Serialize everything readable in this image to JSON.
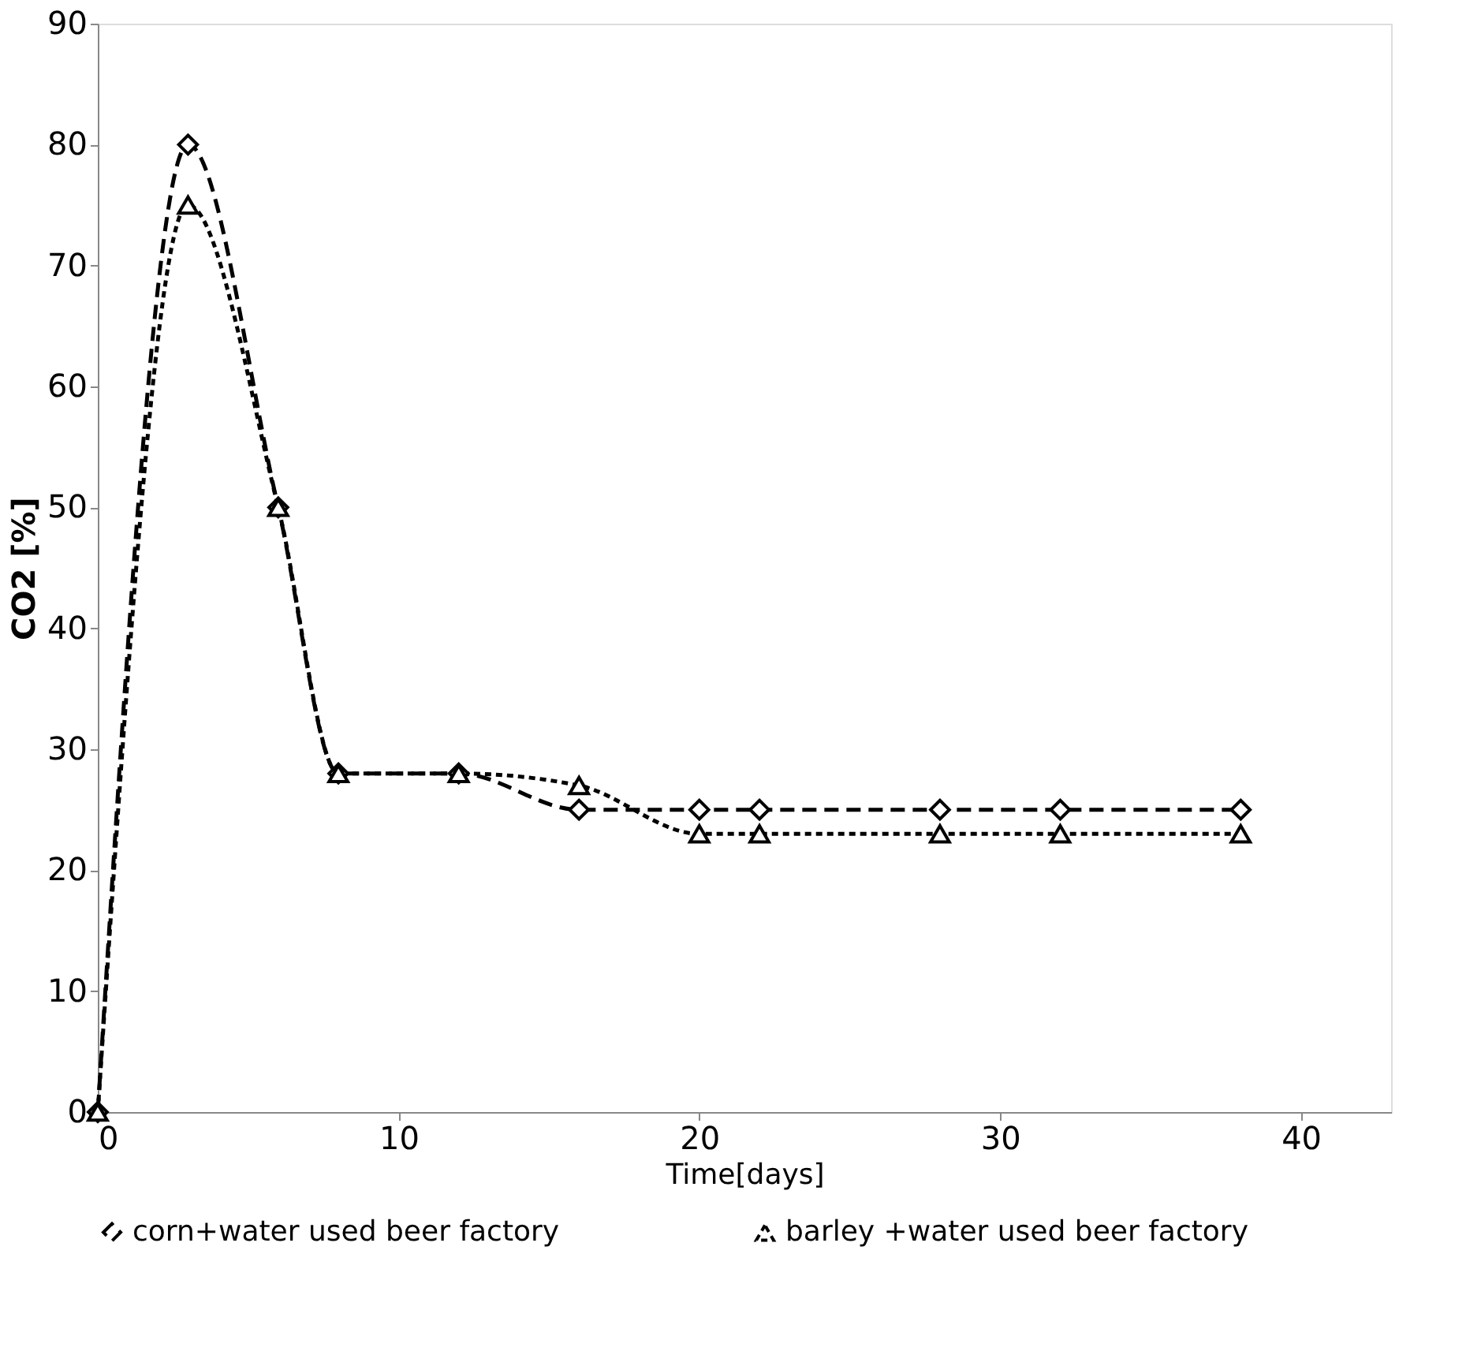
{
  "chart_data": {
    "type": "line",
    "xlabel": "Time[days]",
    "ylabel": "CO2 [%]",
    "x": [
      0,
      3,
      6,
      8,
      12,
      16,
      20,
      22,
      28,
      32,
      38
    ],
    "series": [
      {
        "name": "corn+water used beer factory",
        "color": "#000000",
        "marker": "diamond",
        "line_style": "dashed",
        "values": [
          0,
          80,
          50,
          28,
          28,
          25,
          25,
          25,
          25,
          25,
          25
        ]
      },
      {
        "name": "barley +water used beer factory",
        "color": "#000000",
        "marker": "triangle",
        "line_style": "dotted",
        "values": [
          0,
          75,
          50,
          28,
          28,
          27,
          23,
          23,
          23,
          23,
          23
        ]
      }
    ],
    "xlim": [
      0,
      43
    ],
    "xticks": [
      0,
      10,
      20,
      30,
      40
    ],
    "ylim": [
      0,
      90
    ],
    "yticks": [
      0,
      10,
      20,
      30,
      40,
      50,
      60,
      70,
      80,
      90
    ],
    "grid": false,
    "legend": "bottom"
  }
}
